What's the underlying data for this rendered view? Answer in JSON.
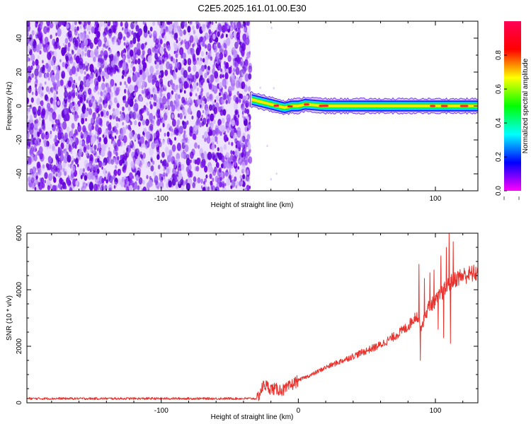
{
  "title": "C2E5.2025.161.01.00.E30",
  "colors": {
    "snr_line": "#e8322d",
    "axis": "#000000",
    "spectrogram_background": "#6a00e0",
    "colormap": [
      "#ff00ff",
      "#0000ff",
      "#00ffff",
      "#00ff00",
      "#ffff00",
      "#ff0000",
      "#ff0055"
    ]
  },
  "chart_data": [
    {
      "type": "heatmap",
      "xlabel": "Height of straight line (km)",
      "ylabel": "Frequency (Hz)",
      "xlim": [
        -198,
        131
      ],
      "ylim": [
        -50,
        50
      ],
      "x_ticks": [
        -100,
        100
      ],
      "y_ticks": [
        40,
        20,
        0,
        -20,
        -40
      ],
      "colorbar": {
        "label": "Normalized spectral amplitude",
        "range": [
          0,
          1
        ],
        "ticks": [
          "0.0",
          "0.2",
          "0.4",
          "0.6",
          "0.8"
        ],
        "position": "right"
      },
      "noise_region_x": [
        -198,
        -35
      ],
      "signal_track": {
        "x_start": -35,
        "x_end": 131,
        "center_frequency": [
          {
            "x": -35,
            "y": 4
          },
          {
            "x": -30,
            "y": 3
          },
          {
            "x": -25,
            "y": 2
          },
          {
            "x": -20,
            "y": 1
          },
          {
            "x": -15,
            "y": 0
          },
          {
            "x": -10,
            "y": -1
          },
          {
            "x": -5,
            "y": 0
          },
          {
            "x": 0,
            "y": 0
          },
          {
            "x": 5,
            "y": 1
          },
          {
            "x": 20,
            "y": 0
          },
          {
            "x": 131,
            "y": 0
          }
        ]
      }
    },
    {
      "type": "line",
      "xlabel": "Height of straight line (km)",
      "ylabel": "SNR (10 * v/v)",
      "xlim": [
        -198,
        131
      ],
      "ylim": [
        0,
        6000
      ],
      "x_ticks": [
        -100,
        0,
        100
      ],
      "y_ticks": [
        0,
        2000,
        4000,
        6000
      ],
      "series": [
        {
          "points": [
            {
              "x": -198,
              "y": 150
            },
            {
              "x": -150,
              "y": 150
            },
            {
              "x": -100,
              "y": 150
            },
            {
              "x": -50,
              "y": 150
            },
            {
              "x": -30,
              "y": 150
            },
            {
              "x": -25,
              "y": 650
            },
            {
              "x": -20,
              "y": 500
            },
            {
              "x": -10,
              "y": 450
            },
            {
              "x": 0,
              "y": 800
            },
            {
              "x": 10,
              "y": 1000
            },
            {
              "x": 20,
              "y": 1250
            },
            {
              "x": 30,
              "y": 1450
            },
            {
              "x": 40,
              "y": 1650
            },
            {
              "x": 50,
              "y": 1850
            },
            {
              "x": 60,
              "y": 2050
            },
            {
              "x": 70,
              "y": 2350
            },
            {
              "x": 80,
              "y": 2700
            },
            {
              "x": 86,
              "y": 3100
            },
            {
              "x": 90,
              "y": 2700
            },
            {
              "x": 95,
              "y": 3400
            },
            {
              "x": 100,
              "y": 3600
            },
            {
              "x": 105,
              "y": 3900
            },
            {
              "x": 110,
              "y": 4200
            },
            {
              "x": 115,
              "y": 4400
            },
            {
              "x": 120,
              "y": 4500
            },
            {
              "x": 131,
              "y": 4600
            }
          ],
          "spikes": [
            {
              "x": 88,
              "y": 4900
            },
            {
              "x": 89,
              "y": 1500
            },
            {
              "x": 92,
              "y": 4400
            },
            {
              "x": 96,
              "y": 4600
            },
            {
              "x": 99,
              "y": 4700
            },
            {
              "x": 102,
              "y": 2600
            },
            {
              "x": 104,
              "y": 5200
            },
            {
              "x": 106,
              "y": 2300
            },
            {
              "x": 108,
              "y": 5500
            },
            {
              "x": 110,
              "y": 6100
            },
            {
              "x": 111,
              "y": 2100
            },
            {
              "x": 113,
              "y": 5700
            }
          ]
        }
      ]
    }
  ]
}
